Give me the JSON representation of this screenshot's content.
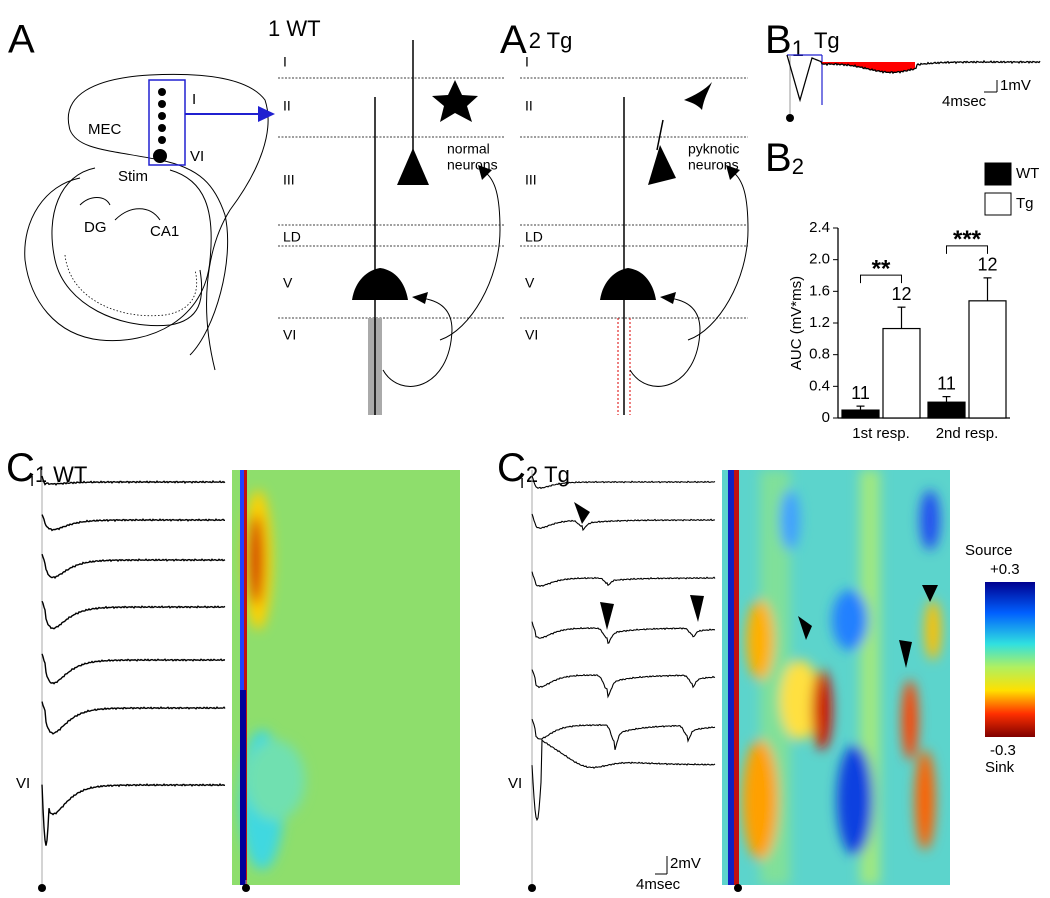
{
  "panels": {
    "a": "A",
    "a1": "1 WT",
    "a2": {
      "letter": "A",
      "rest": "2 Tg"
    },
    "b1": {
      "letter": "B",
      "sub": "1",
      "name": "Tg"
    },
    "c1": {
      "letter": "C",
      "sub": "1",
      "name": "WT"
    },
    "c2": {
      "letter": "C",
      "sub": "2",
      "name": "Tg"
    }
  },
  "hippocampus": {
    "mec": "MEC",
    "top_layer": "I",
    "bottom_layer": "VI",
    "stim": "Stim",
    "dg": "DG",
    "ca1": "CA1"
  },
  "schematic_layers": [
    "I",
    "II",
    "III",
    "LD",
    "V",
    "VI"
  ],
  "a1_note": [
    "normal",
    "neurons"
  ],
  "a2_note": [
    "pyknotic",
    "neurons"
  ],
  "b1_scale": {
    "v": "1mV",
    "t": "4msec"
  },
  "c_scale": {
    "v": "2mV",
    "t": "4msec"
  },
  "c_trace_layers": {
    "top": "I",
    "bottom": "VI"
  },
  "colorbar": {
    "top": "Source",
    "max": "+0.3",
    "min": "-0.3",
    "bottom": "Sink"
  },
  "chart_data": {
    "type": "bar",
    "panel_letter": "B",
    "panel_sub": "2",
    "ylabel": "AUC (mV*ms)",
    "categories": [
      "1st resp.",
      "2nd resp."
    ],
    "series": [
      {
        "name": "WT",
        "color": "#000000",
        "values": [
          0.1,
          0.2
        ],
        "errors": [
          0.05,
          0.07
        ],
        "n": [
          11,
          11
        ]
      },
      {
        "name": "Tg",
        "color": "#ffffff",
        "values": [
          1.13,
          1.48
        ],
        "errors": [
          0.27,
          0.29
        ],
        "n": [
          12,
          12
        ]
      }
    ],
    "significance": [
      "**",
      "***"
    ],
    "ylim": [
      0,
      2.4
    ],
    "yticks": [
      0,
      0.4,
      0.8,
      1.2,
      1.6,
      {
        "value": 2,
        "label": "2.0"
      },
      2.4
    ]
  }
}
